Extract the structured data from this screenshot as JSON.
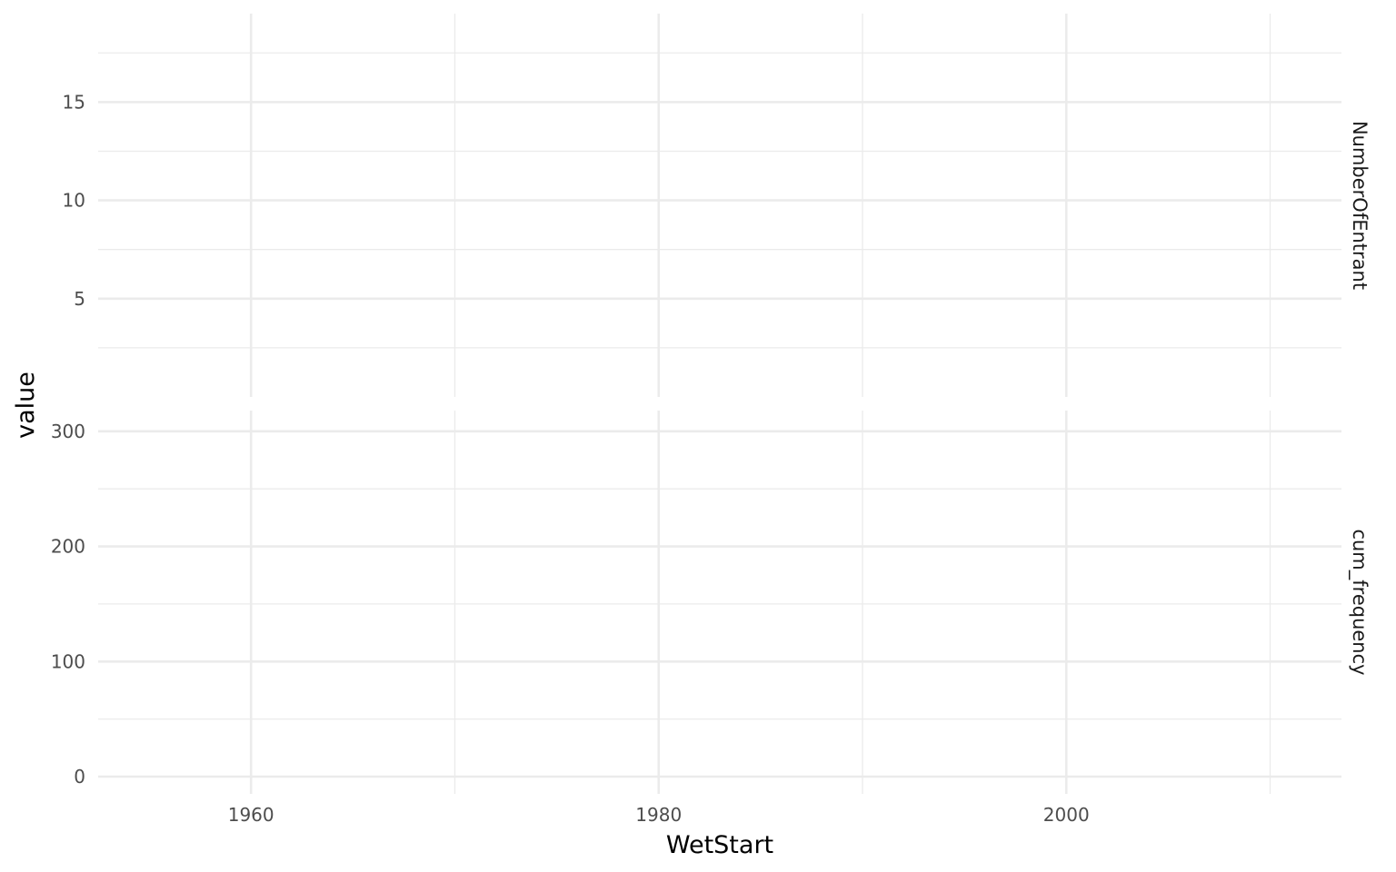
{
  "chart_data": {
    "type": "line",
    "xlabel": "WetStart",
    "ylabel": "value",
    "x_ticks": [
      1960,
      1980,
      2000
    ],
    "x_minor_ticks": [
      1970,
      1990,
      2010
    ],
    "xlim": [
      1952.5,
      2013.5
    ],
    "grid": true,
    "colors": {
      "background": "#ffffff",
      "grid": "#ebebeb",
      "tick_text": "#4d4d4d",
      "strip_text": "#1a1a1a"
    },
    "facets": [
      {
        "strip": "NumberOfEntrant",
        "ylim": [
          0,
          19.5
        ],
        "y_ticks": [
          5,
          10,
          15
        ],
        "y_minor_ticks": [
          2.5,
          7.5,
          12.5,
          17.5
        ],
        "series": []
      },
      {
        "strip": "cum_frequency",
        "ylim": [
          -15,
          318
        ],
        "y_ticks": [
          0,
          100,
          200,
          300
        ],
        "y_minor_ticks": [
          50,
          150,
          250
        ],
        "series": []
      }
    ]
  }
}
